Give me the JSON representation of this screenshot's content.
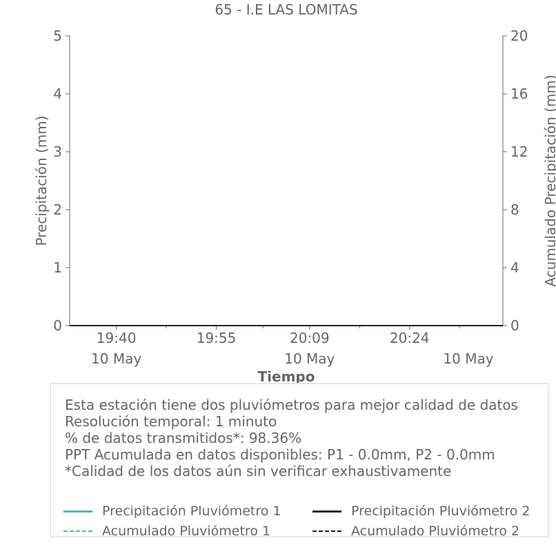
{
  "chart_data": {
    "type": "line",
    "title": "65 - I.E LAS LOMITAS",
    "xlabel": "Tiempo",
    "ylabel": "Precipitación (mm)",
    "y2label": "Acumulado Precipitación (mm)",
    "ylim": [
      0,
      5
    ],
    "y2lim": [
      0,
      20
    ],
    "yticks": [
      "0",
      "1",
      "2",
      "3",
      "4",
      "5"
    ],
    "y2ticks": [
      "0",
      "4",
      "8",
      "12",
      "16",
      "20"
    ],
    "xlim": [
      "19:33",
      "20:38"
    ],
    "xticks": [
      {
        "time": "19:40",
        "date": "10 May"
      },
      {
        "time": "19:55",
        "date": "10 May"
      },
      {
        "time": "20:09",
        "date": "10 May"
      },
      {
        "time": "20:24",
        "date": "10 May"
      }
    ],
    "date_label_positions": [
      "19:40",
      "20:09",
      "20:38"
    ],
    "series": [
      {
        "name": "Precipitación Pluviómetro 1",
        "axis": "left",
        "style": "solid",
        "color": "#4fb3bf",
        "x": [
          "19:33",
          "20:38"
        ],
        "values": [
          0,
          0
        ]
      },
      {
        "name": "Acumulado Pluviómetro 1",
        "axis": "right",
        "style": "dashed",
        "color": "#4fb3bf",
        "x": [
          "19:33",
          "20:38"
        ],
        "values": [
          0,
          0
        ]
      },
      {
        "name": "Precipitación Pluviómetro 2",
        "axis": "left",
        "style": "solid",
        "color": "#1b1f3b",
        "x": [
          "19:33",
          "20:38"
        ],
        "values": [
          0,
          0
        ]
      },
      {
        "name": "Acumulado Pluviómetro 2",
        "axis": "right",
        "style": "dashed",
        "color": "#1b1f3b",
        "x": [
          "19:33",
          "20:38"
        ],
        "values": [
          0,
          0
        ]
      }
    ],
    "grid": false,
    "legend_placement": "bottom"
  },
  "info": {
    "lines": [
      "Esta estación tiene dos pluviómetros para mejor calidad de datos",
      "Resolución temporal: 1 minuto",
      "% de datos transmitidos*: 98.36%",
      "PPT Acumulada en datos disponibles: P1 - 0.0mm, P2 - 0.0mm",
      "*Calidad de los datos aún sin verificar exhaustivamente"
    ]
  },
  "legend": {
    "items": [
      {
        "label": "Precipitación Pluviómetro 1",
        "color": "#4fb3bf",
        "style": "solid"
      },
      {
        "label": "Precipitación Pluviómetro 2",
        "color": "#1b1f3b",
        "style": "solid"
      },
      {
        "label": "Acumulado Pluviómetro 1",
        "color": "#4fb3bf",
        "style": "dashed"
      },
      {
        "label": "Acumulado Pluviómetro 2",
        "color": "#1b1f3b",
        "style": "dashed"
      }
    ]
  }
}
